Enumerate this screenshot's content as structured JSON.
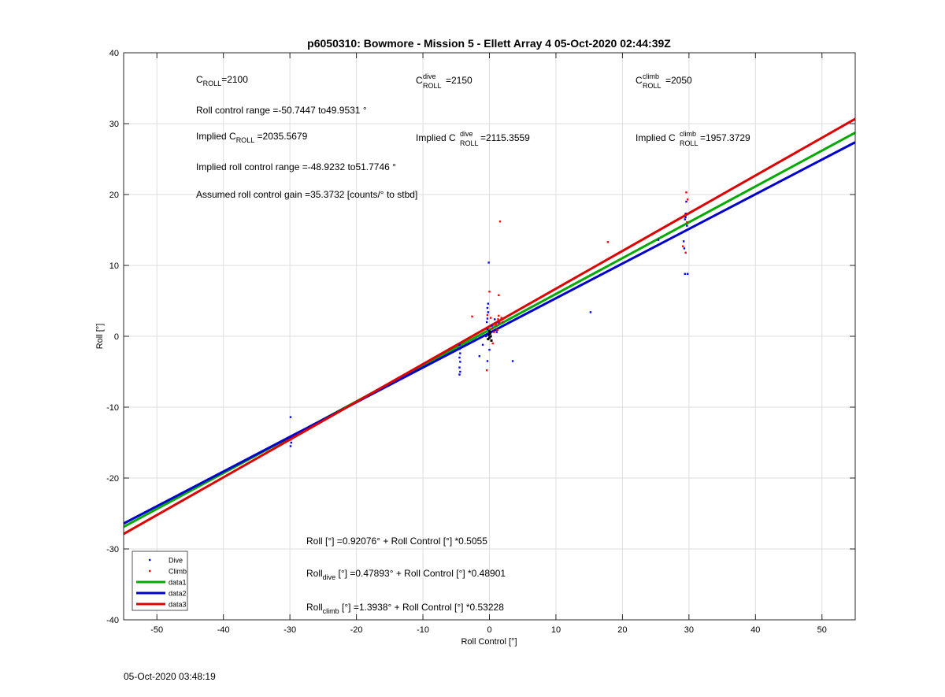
{
  "chart_data": {
    "type": "scatter",
    "title": "p6050310: Bowmore - Mission 5 - Ellett Array 4 05-Oct-2020 02:44:39Z",
    "xlabel": "Roll Control [°]",
    "ylabel": "Roll [°]",
    "xlim": [
      -55,
      55
    ],
    "ylim": [
      -40,
      40
    ],
    "xticks": [
      -50,
      -40,
      -30,
      -20,
      -10,
      0,
      10,
      20,
      30,
      40,
      50
    ],
    "yticks": [
      -40,
      -30,
      -20,
      -10,
      0,
      10,
      20,
      30,
      40
    ],
    "grid": true,
    "legend_position": "bottom-left",
    "series": [
      {
        "name": "Dive",
        "kind": "points",
        "color": "#0000ff",
        "points": [
          [
            -29.9,
            -11.4
          ],
          [
            -29.8,
            -15.0
          ],
          [
            -29.9,
            -15.5
          ],
          [
            -4.5,
            -1.2
          ],
          [
            -4.5,
            -1.8
          ],
          [
            -4.4,
            -2.4
          ],
          [
            -4.5,
            -3.0
          ],
          [
            -4.4,
            -3.6
          ],
          [
            -4.5,
            -4.4
          ],
          [
            -4.4,
            -5.0
          ],
          [
            -4.5,
            -5.4
          ],
          [
            -1.5,
            -2.8
          ],
          [
            -1.0,
            -1.2
          ],
          [
            -0.5,
            0.0
          ],
          [
            -0.3,
            1.0
          ],
          [
            -0.2,
            0.4
          ],
          [
            -0.4,
            2.0
          ],
          [
            -0.3,
            2.5
          ],
          [
            -0.2,
            3.4
          ],
          [
            -0.3,
            4.0
          ],
          [
            -0.2,
            4.6
          ],
          [
            -0.1,
            10.4
          ],
          [
            -0.3,
            -3.5
          ],
          [
            0.0,
            -1.9
          ],
          [
            0.4,
            1.5
          ],
          [
            0.8,
            2.4
          ],
          [
            1.1,
            0.6
          ],
          [
            1.4,
            1.9
          ],
          [
            3.5,
            -3.5
          ],
          [
            15.2,
            3.4
          ],
          [
            25.4,
            13.6
          ],
          [
            29.2,
            13.4
          ],
          [
            29.3,
            12.4
          ],
          [
            29.4,
            8.8
          ],
          [
            29.8,
            8.8
          ],
          [
            29.4,
            16.5
          ],
          [
            29.5,
            17.3
          ],
          [
            29.6,
            19.0
          ],
          [
            29.7,
            15.6
          ],
          [
            29.5,
            16.8
          ]
        ]
      },
      {
        "name": "Climb",
        "kind": "points",
        "color": "#ff0000",
        "points": [
          [
            -29.9,
            -14.6
          ],
          [
            -2.6,
            2.8
          ],
          [
            -0.4,
            -4.8
          ],
          [
            -0.3,
            3.0
          ],
          [
            -0.2,
            1.2
          ],
          [
            0.0,
            6.3
          ],
          [
            0.2,
            2.6
          ],
          [
            0.4,
            1.1
          ],
          [
            0.6,
            1.6
          ],
          [
            0.5,
            -1.0
          ],
          [
            0.7,
            0.6
          ],
          [
            1.0,
            1.6
          ],
          [
            1.2,
            0.9
          ],
          [
            1.3,
            2.4
          ],
          [
            1.4,
            2.9
          ],
          [
            1.5,
            1.9
          ],
          [
            1.6,
            2.2
          ],
          [
            1.4,
            5.8
          ],
          [
            1.6,
            16.2
          ],
          [
            1.8,
            2.6
          ],
          [
            2.0,
            2.0
          ],
          [
            17.8,
            13.3
          ],
          [
            29.1,
            12.7
          ],
          [
            29.4,
            17.1
          ],
          [
            29.6,
            20.3
          ],
          [
            29.8,
            19.3
          ],
          [
            29.5,
            11.8
          ],
          [
            29.7,
            16.1
          ]
        ]
      },
      {
        "name": "data1",
        "kind": "line",
        "color": "#00aa00",
        "intercept": 0.92076,
        "slope": 0.5055
      },
      {
        "name": "data2",
        "kind": "line",
        "color": "#0000cc",
        "intercept": 0.47893,
        "slope": 0.48901
      },
      {
        "name": "data3",
        "kind": "line",
        "color": "#dd0000",
        "intercept": 1.3938,
        "slope": 0.53228
      }
    ],
    "annotations": {
      "c_roll": {
        "base": "C",
        "sub": "ROLL",
        "value": "=2100"
      },
      "c_roll_dive": {
        "base": "C",
        "sup": "dive",
        "sub": "ROLL",
        "value": "=2150"
      },
      "c_roll_climb": {
        "base": "C",
        "sup": "climb",
        "sub": "ROLL",
        "value": "=2050"
      },
      "roll_control_range": "Roll control range =-50.7447 to49.9531 °",
      "implied_c_roll": {
        "prefix": "Implied C",
        "sub": "ROLL",
        "value": " =2035.5679"
      },
      "implied_c_roll_dive": {
        "prefix": "Implied C",
        "sup": "dive",
        "sub": "ROLL",
        "value": " =2115.3559"
      },
      "implied_c_roll_climb": {
        "prefix": "Implied C",
        "sup": "climb",
        "sub": "ROLL",
        "value": " =1957.3729"
      },
      "implied_range": "Implied roll control range =-48.9232 to51.7746 °",
      "gain": "Assumed roll control gain =35.3732 [counts/° to stbd]",
      "fit_all": "Roll [°] =0.92076° + Roll Control [°] *0.5055",
      "fit_dive": {
        "base": "Roll",
        "sub": "dive",
        "rest": " [°] =0.47893° + Roll Control [°] *0.48901"
      },
      "fit_climb": {
        "base": "Roll",
        "sub": "climb",
        "rest": " [°] =1.3938° + Roll Control [°] *0.53228"
      }
    }
  },
  "footer_timestamp": "05-Oct-2020 03:48:19"
}
